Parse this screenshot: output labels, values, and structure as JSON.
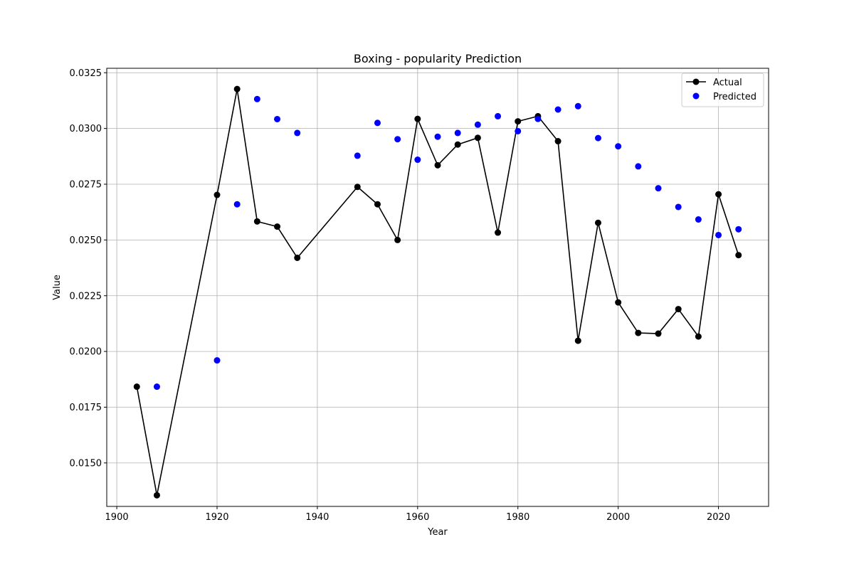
{
  "chart_data": {
    "type": "line",
    "title": "Boxing - popularity Prediction",
    "xlabel": "Year",
    "ylabel": "Value",
    "xlim": [
      1898,
      2030
    ],
    "ylim": [
      0.01305,
      0.0327
    ],
    "xticks": [
      1900,
      1920,
      1940,
      1960,
      1980,
      2000,
      2020
    ],
    "xtick_labels": [
      "1900",
      "1920",
      "1940",
      "1960",
      "1980",
      "2000",
      "2020"
    ],
    "yticks": [
      0.015,
      0.0175,
      0.02,
      0.0225,
      0.025,
      0.0275,
      0.03,
      0.0325
    ],
    "ytick_labels": [
      "0.0150",
      "0.0175",
      "0.0200",
      "0.0225",
      "0.0250",
      "0.0275",
      "0.0300",
      "0.0325"
    ],
    "grid": true,
    "legend_position": "top-right",
    "series": [
      {
        "name": "Actual",
        "style": "line-marker",
        "color": "#000000",
        "x": [
          1904,
          1908,
          1920,
          1924,
          1928,
          1932,
          1936,
          1948,
          1952,
          1956,
          1960,
          1964,
          1968,
          1972,
          1976,
          1980,
          1984,
          1988,
          1992,
          1996,
          2000,
          2004,
          2008,
          2012,
          2016,
          2020,
          2024
        ],
        "y": [
          0.01842,
          0.01355,
          0.02702,
          0.03177,
          0.02583,
          0.0256,
          0.0242,
          0.02738,
          0.0266,
          0.025,
          0.03043,
          0.02835,
          0.02928,
          0.02958,
          0.02533,
          0.03032,
          0.03055,
          0.02943,
          0.02048,
          0.02577,
          0.0222,
          0.02083,
          0.0208,
          0.0219,
          0.02067,
          0.02705,
          0.02432
        ]
      },
      {
        "name": "Predicted",
        "style": "scatter",
        "color": "#0000ff",
        "x": [
          1908,
          1920,
          1924,
          1928,
          1932,
          1936,
          1948,
          1952,
          1956,
          1960,
          1964,
          1968,
          1972,
          1976,
          1980,
          1984,
          1988,
          1992,
          1996,
          2000,
          2004,
          2008,
          2012,
          2016,
          2020,
          2024
        ],
        "y": [
          0.01842,
          0.0196,
          0.0266,
          0.03132,
          0.03042,
          0.0298,
          0.02878,
          0.03025,
          0.02952,
          0.0286,
          0.02963,
          0.0298,
          0.03017,
          0.03055,
          0.02988,
          0.03043,
          0.03085,
          0.031,
          0.02957,
          0.0292,
          0.0283,
          0.02732,
          0.02648,
          0.02592,
          0.02522,
          0.02548
        ]
      }
    ]
  }
}
